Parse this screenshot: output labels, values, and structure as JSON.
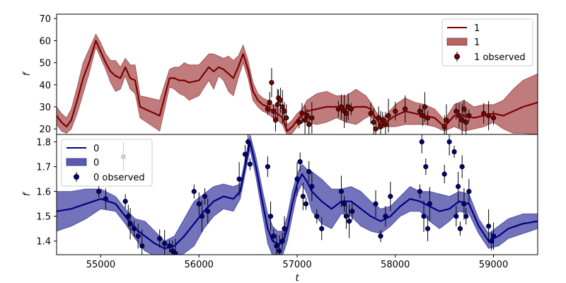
{
  "chart_data": [
    {
      "type": "line",
      "panel": "top",
      "xlabel": "",
      "ylabel": "f",
      "xlim": [
        54550,
        59450
      ],
      "ylim": [
        17.5,
        72
      ],
      "yticks": [
        20,
        30,
        40,
        50,
        60,
        70
      ],
      "grid": false,
      "legend_position": "top-right",
      "legend": [
        "1",
        "1",
        "1 observed"
      ],
      "colors": {
        "line": "#7b0000",
        "band": "#b56565",
        "points": "#7b0000",
        "errorbar": "#000000"
      },
      "gp_mean": {
        "name": "1",
        "x": [
          54550,
          54600,
          54650,
          54700,
          54760,
          54820,
          54880,
          54950,
          55000,
          55050,
          55100,
          55150,
          55200,
          55250,
          55300,
          55350,
          55400,
          55500,
          55600,
          55700,
          55750,
          55800,
          55850,
          55900,
          56000,
          56100,
          56150,
          56200,
          56250,
          56300,
          56350,
          56400,
          56450,
          56500,
          56550,
          56600,
          56650,
          56700,
          56750,
          56800,
          56850,
          56900,
          56950,
          57000,
          57050,
          57100,
          57200,
          57300,
          57400,
          57500,
          57600,
          57700,
          57750,
          57800,
          57850,
          57900,
          58000,
          58100,
          58200,
          58300,
          58400,
          58500,
          58600,
          58700,
          58800,
          58900,
          59000,
          59100,
          59200,
          59300,
          59450
        ],
        "y": [
          26,
          23,
          21,
          24,
          33,
          43,
          50,
          60,
          55,
          50,
          46,
          44,
          43,
          48,
          43,
          42,
          30,
          28,
          26,
          43,
          43,
          42,
          42,
          41,
          42,
          48,
          46,
          48,
          47,
          45,
          43,
          48,
          54,
          47,
          37,
          33,
          31,
          30,
          28,
          27,
          25,
          19,
          21,
          24,
          26,
          28,
          29,
          30,
          30,
          29,
          30,
          30,
          29,
          25,
          22,
          23,
          26,
          28,
          27,
          26,
          25,
          21,
          26,
          26,
          25,
          26,
          27,
          26,
          28,
          30,
          32
        ]
      },
      "gp_band": {
        "name": "1",
        "x": [
          54550,
          54600,
          54650,
          54700,
          54760,
          54820,
          54880,
          54950,
          55000,
          55050,
          55100,
          55150,
          55200,
          55250,
          55300,
          55350,
          55400,
          55500,
          55600,
          55700,
          55750,
          55800,
          55850,
          55900,
          56000,
          56100,
          56150,
          56200,
          56250,
          56300,
          56350,
          56400,
          56450,
          56500,
          56550,
          56600,
          56650,
          56700,
          56750,
          56800,
          56850,
          56900,
          56950,
          57000,
          57050,
          57100,
          57200,
          57300,
          57400,
          57500,
          57600,
          57700,
          57750,
          57800,
          57850,
          57900,
          58000,
          58100,
          58200,
          58300,
          58400,
          58500,
          58600,
          58700,
          58800,
          58900,
          59000,
          59100,
          59200,
          59300,
          59450
        ],
        "lower": [
          22,
          19,
          18,
          20,
          27,
          36,
          45,
          57,
          52,
          47,
          41,
          37,
          38,
          44,
          38,
          36,
          25,
          22,
          19,
          39,
          38,
          36,
          35,
          33,
          35,
          42,
          38,
          44,
          42,
          37,
          35,
          43,
          50,
          43,
          33,
          30,
          28,
          27,
          25,
          24,
          22,
          17,
          18,
          21,
          23,
          23,
          22,
          23,
          25,
          23,
          22,
          25,
          26,
          22,
          20,
          21,
          21,
          22,
          22,
          22,
          21,
          19,
          21,
          19,
          20,
          21,
          23,
          20,
          18,
          18,
          17.5
        ],
        "upper": [
          30,
          27,
          25,
          29,
          39,
          50,
          56,
          63,
          59,
          54,
          51,
          51,
          48,
          52,
          49,
          49,
          35,
          34,
          33,
          47,
          48,
          48,
          50,
          49,
          49,
          54,
          54,
          53,
          52,
          53,
          51,
          53,
          58,
          51,
          41,
          36,
          34,
          33,
          31,
          30,
          28,
          22,
          24,
          27,
          29,
          33,
          36,
          37,
          35,
          35,
          38,
          35,
          32,
          28,
          25,
          26,
          31,
          34,
          32,
          31,
          29,
          24,
          31,
          33,
          30,
          31,
          31,
          33,
          38,
          42,
          45
        ]
      },
      "observed": {
        "name": "1 observed",
        "x": [
          56700,
          56720,
          56740,
          56760,
          56780,
          56800,
          56810,
          56830,
          56850,
          56870,
          56890,
          57020,
          57050,
          57080,
          57100,
          57120,
          57150,
          57420,
          57450,
          57480,
          57500,
          57520,
          57550,
          57750,
          57780,
          57800,
          57830,
          57850,
          57870,
          57900,
          57930,
          58000,
          58100,
          58250,
          58280,
          58300,
          58330,
          58500,
          58520,
          58620,
          58650,
          58680,
          58700,
          58720,
          58750,
          58900,
          58950,
          59000
        ],
        "y": [
          29,
          32,
          41,
          28,
          24,
          31,
          34,
          33,
          30,
          28,
          25,
          23,
          27,
          24,
          26,
          22,
          25,
          29,
          30,
          28,
          27,
          30,
          29,
          27,
          23,
          20,
          25,
          21,
          24,
          22,
          26,
          28,
          29,
          28,
          26,
          30,
          25,
          21,
          24,
          28,
          26,
          24,
          29,
          23,
          26,
          27,
          26,
          25
        ]
      }
    },
    {
      "type": "line",
      "panel": "bottom",
      "xlabel": "t",
      "ylabel": "f",
      "xlim": [
        54550,
        59450
      ],
      "ylim": [
        1.345,
        1.83
      ],
      "xticks": [
        55000,
        56000,
        57000,
        58000,
        59000
      ],
      "yticks": [
        1.4,
        1.5,
        1.6,
        1.7,
        1.8
      ],
      "grid": false,
      "legend_position": "top-left",
      "legend": [
        "0",
        "0",
        "0 observed"
      ],
      "colors": {
        "line": "#000080",
        "band": "#5b5bb0",
        "points": "#000080",
        "errorbar": "#000000"
      },
      "gp_mean": {
        "name": "0",
        "x": [
          54550,
          54700,
          54850,
          55000,
          55150,
          55250,
          55350,
          55450,
          55550,
          55650,
          55750,
          55850,
          55950,
          56050,
          56150,
          56250,
          56350,
          56420,
          56480,
          56520,
          56580,
          56650,
          56700,
          56750,
          56800,
          56850,
          56900,
          56950,
          57000,
          57050,
          57100,
          57150,
          57250,
          57350,
          57450,
          57550,
          57650,
          57750,
          57850,
          57950,
          58050,
          58150,
          58250,
          58350,
          58450,
          58550,
          58650,
          58750,
          58850,
          58950,
          59050,
          59150,
          59300,
          59450
        ],
        "y": [
          1.52,
          1.53,
          1.55,
          1.57,
          1.55,
          1.5,
          1.45,
          1.42,
          1.39,
          1.37,
          1.38,
          1.42,
          1.47,
          1.52,
          1.56,
          1.58,
          1.57,
          1.6,
          1.72,
          1.8,
          1.7,
          1.55,
          1.45,
          1.4,
          1.39,
          1.39,
          1.45,
          1.55,
          1.63,
          1.67,
          1.64,
          1.6,
          1.56,
          1.53,
          1.56,
          1.56,
          1.53,
          1.5,
          1.48,
          1.5,
          1.54,
          1.57,
          1.56,
          1.54,
          1.52,
          1.53,
          1.56,
          1.55,
          1.46,
          1.4,
          1.42,
          1.45,
          1.47,
          1.48
        ]
      },
      "gp_band": {
        "name": "0",
        "x": [
          54550,
          54700,
          54850,
          55000,
          55150,
          55250,
          55350,
          55450,
          55550,
          55650,
          55750,
          55850,
          55950,
          56050,
          56150,
          56250,
          56350,
          56420,
          56480,
          56520,
          56580,
          56650,
          56700,
          56750,
          56800,
          56850,
          56900,
          56950,
          57000,
          57050,
          57100,
          57150,
          57250,
          57350,
          57450,
          57550,
          57650,
          57750,
          57850,
          57950,
          58050,
          58150,
          58250,
          58350,
          58450,
          58550,
          58650,
          58750,
          58850,
          58950,
          59050,
          59150,
          59300,
          59450
        ],
        "lower": [
          1.44,
          1.46,
          1.49,
          1.53,
          1.52,
          1.47,
          1.41,
          1.36,
          1.34,
          1.34,
          1.34,
          1.35,
          1.38,
          1.45,
          1.5,
          1.53,
          1.52,
          1.57,
          1.69,
          1.77,
          1.66,
          1.5,
          1.39,
          1.34,
          1.34,
          1.34,
          1.4,
          1.5,
          1.59,
          1.63,
          1.59,
          1.52,
          1.47,
          1.45,
          1.51,
          1.5,
          1.46,
          1.44,
          1.43,
          1.46,
          1.5,
          1.52,
          1.52,
          1.48,
          1.45,
          1.48,
          1.52,
          1.51,
          1.43,
          1.37,
          1.38,
          1.41,
          1.43,
          1.45
        ],
        "upper": [
          1.6,
          1.6,
          1.61,
          1.61,
          1.58,
          1.53,
          1.49,
          1.48,
          1.44,
          1.4,
          1.42,
          1.49,
          1.56,
          1.59,
          1.62,
          1.63,
          1.62,
          1.63,
          1.75,
          1.83,
          1.74,
          1.6,
          1.51,
          1.46,
          1.44,
          1.44,
          1.5,
          1.6,
          1.67,
          1.71,
          1.69,
          1.68,
          1.65,
          1.61,
          1.61,
          1.62,
          1.6,
          1.56,
          1.53,
          1.54,
          1.58,
          1.62,
          1.6,
          1.6,
          1.59,
          1.58,
          1.6,
          1.59,
          1.49,
          1.43,
          1.46,
          1.49,
          1.51,
          1.51
        ]
      },
      "observed": {
        "name": "0 observed",
        "x": [
          54980,
          55050,
          55230,
          55250,
          55280,
          55300,
          55340,
          55380,
          55420,
          55600,
          55650,
          55700,
          55730,
          55760,
          55950,
          56000,
          56030,
          56060,
          56090,
          56410,
          56470,
          56500,
          56520,
          56700,
          56730,
          56760,
          56790,
          56820,
          56850,
          56870,
          57000,
          57030,
          57060,
          57090,
          57120,
          57150,
          57200,
          57250,
          57450,
          57480,
          57500,
          57530,
          57560,
          57800,
          57850,
          57900,
          57950,
          58250,
          58270,
          58290,
          58310,
          58330,
          58350,
          58500,
          58550,
          58600,
          58620,
          58640,
          58660,
          58680,
          58700,
          58720,
          58750,
          58950,
          58980,
          59000
        ],
        "y": [
          1.6,
          1.57,
          1.74,
          1.56,
          1.5,
          1.47,
          1.45,
          1.42,
          1.38,
          1.41,
          1.39,
          1.38,
          1.36,
          1.35,
          1.6,
          1.55,
          1.5,
          1.58,
          1.52,
          1.65,
          1.75,
          1.8,
          1.71,
          1.7,
          1.5,
          1.42,
          1.38,
          1.36,
          1.4,
          1.45,
          1.65,
          1.72,
          1.58,
          1.55,
          1.68,
          1.62,
          1.5,
          1.45,
          1.6,
          1.55,
          1.5,
          1.48,
          1.52,
          1.55,
          1.42,
          1.5,
          1.58,
          1.6,
          1.8,
          1.5,
          1.7,
          1.45,
          1.55,
          1.67,
          1.8,
          1.76,
          1.5,
          1.62,
          1.45,
          1.7,
          1.55,
          1.5,
          1.6,
          1.46,
          1.4,
          1.42
        ]
      }
    }
  ]
}
